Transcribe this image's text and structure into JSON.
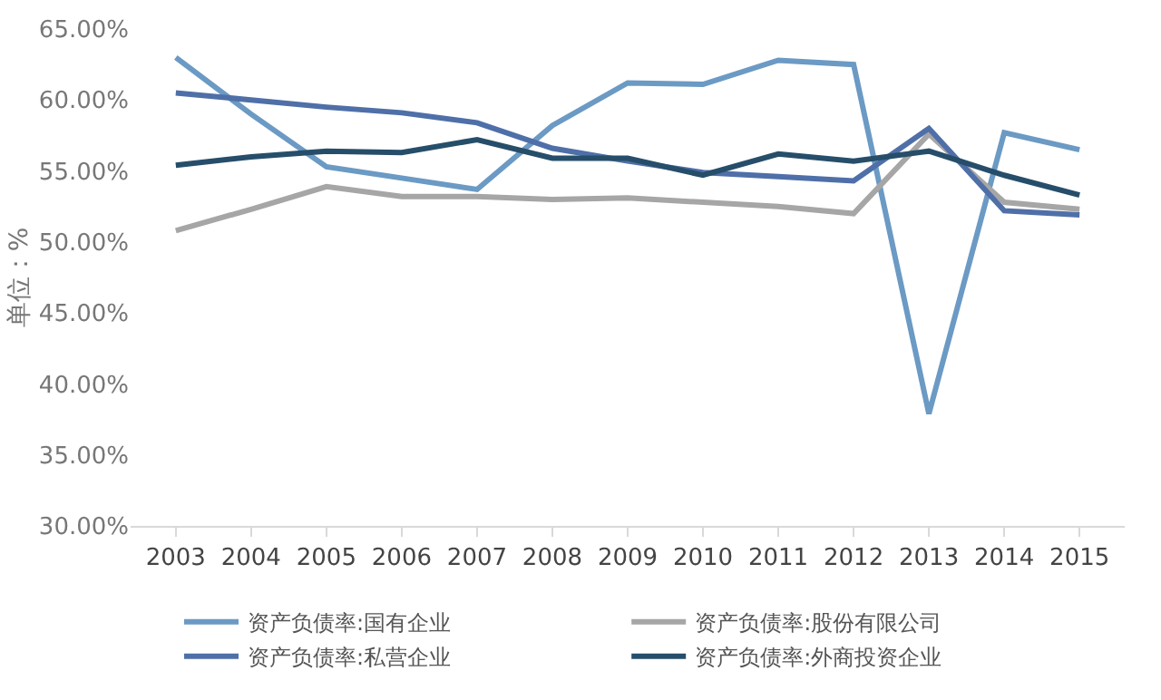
{
  "chart_data": {
    "type": "line",
    "ylabel": "单位：%",
    "categories": [
      "2003",
      "2004",
      "2005",
      "2006",
      "2007",
      "2008",
      "2009",
      "2010",
      "2011",
      "2012",
      "2013",
      "2014",
      "2015"
    ],
    "ylim": [
      30,
      65
    ],
    "yticks": [
      {
        "value": 30,
        "label": "30.00%"
      },
      {
        "value": 35,
        "label": "35.00%"
      },
      {
        "value": 40,
        "label": "40.00%"
      },
      {
        "value": 45,
        "label": "45.00%"
      },
      {
        "value": 50,
        "label": "50.00%"
      },
      {
        "value": 55,
        "label": "55.00%"
      },
      {
        "value": 60,
        "label": "60.00%"
      },
      {
        "value": 65,
        "label": "65.00%"
      }
    ],
    "legend": "bottom",
    "marker": "none",
    "line_style": "solid",
    "series": [
      {
        "name": "资产负债率:国有企业",
        "color": "#6b9ac4",
        "values": [
          63.0,
          59.0,
          55.3,
          54.5,
          53.7,
          58.2,
          61.2,
          61.1,
          62.8,
          62.5,
          37.9,
          57.7,
          56.5
        ]
      },
      {
        "name": "资产负债率:股份有限公司",
        "color": "#a6a6a6",
        "values": [
          50.8,
          52.3,
          53.9,
          53.2,
          53.2,
          53.0,
          53.1,
          52.8,
          52.5,
          52.0,
          57.6,
          52.8,
          52.3
        ]
      },
      {
        "name": "资产负债率:私营企业",
        "color": "#4f6fa8",
        "values": [
          60.5,
          60.0,
          59.5,
          59.1,
          58.4,
          56.6,
          55.7,
          54.9,
          54.6,
          54.3,
          58.0,
          52.2,
          51.9
        ]
      },
      {
        "name": "资产负债率:外商投资企业",
        "color": "#264e6a",
        "values": [
          55.4,
          56.0,
          56.4,
          56.3,
          57.2,
          55.9,
          55.9,
          54.7,
          56.2,
          55.7,
          56.4,
          54.7,
          53.3
        ]
      }
    ]
  }
}
